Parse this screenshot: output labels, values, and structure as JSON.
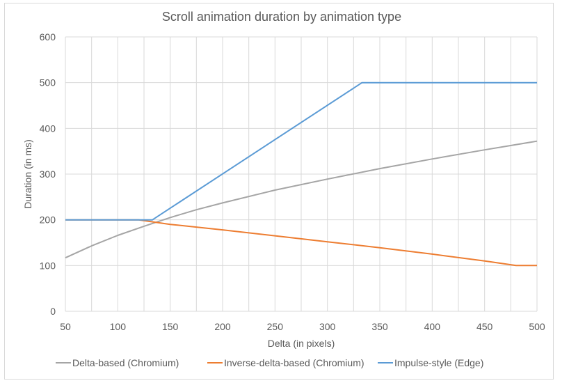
{
  "chart_data": {
    "type": "line",
    "title": "Scroll animation duration by animation type",
    "xlabel": "Delta (in pixels)",
    "ylabel": "Duration (in ms)",
    "xlim": [
      50,
      500
    ],
    "ylim": [
      0,
      600
    ],
    "x_ticks": [
      "50",
      "100",
      "150",
      "200",
      "250",
      "300",
      "350",
      "400",
      "450",
      "500"
    ],
    "y_ticks": [
      "0",
      "100",
      "200",
      "300",
      "400",
      "500",
      "600"
    ],
    "grid": true,
    "legend_position": "bottom",
    "series": [
      {
        "name": "Delta-based (Chromium)",
        "color": "#a5a5a5",
        "x": [
          50,
          75,
          100,
          125,
          150,
          175,
          200,
          250,
          300,
          350,
          400,
          450,
          500
        ],
        "y": [
          117,
          143,
          166,
          186,
          205,
          222,
          237,
          265,
          289,
          312,
          333,
          353,
          372
        ]
      },
      {
        "name": "Inverse-delta-based (Chromium)",
        "color": "#ed7d31",
        "x": [
          50,
          120,
          150,
          200,
          250,
          300,
          350,
          400,
          450,
          480,
          500
        ],
        "y": [
          200,
          200,
          190,
          178,
          165,
          152,
          139,
          125,
          110,
          100,
          100
        ]
      },
      {
        "name": "Impulse-style (Edge)",
        "color": "#5b9bd5",
        "x": [
          50,
          133,
          333,
          500
        ],
        "y": [
          200,
          200,
          500,
          500
        ]
      }
    ]
  }
}
